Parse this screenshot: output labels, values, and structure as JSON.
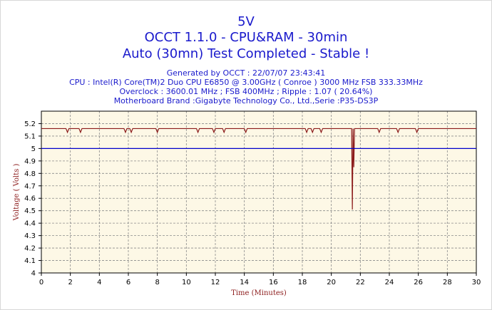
{
  "chart_data": {
    "type": "line",
    "title": "5V",
    "subtitle": "OCCT 1.1.0 - CPU&RAM - 30min",
    "status": "Auto (30mn) Test Completed - Stable !",
    "info_lines": [
      "Generated by OCCT : 22/07/07 23:43:41",
      "CPU : Intel(R) Core(TM)2 Duo CPU     E6850  @ 3.00GHz ( Conroe ) 3000 MHz FSB 333.33MHz",
      "Overclock : 3600.01 MHz ; FSB 400MHz ; Ripple : 1.07 ( 20.64%)",
      "Motherboard Brand :Gigabyte Technology Co., Ltd.,Serie :P35-DS3P"
    ],
    "xlabel": "Time (Minutes)",
    "ylabel": "Voltage ( Volts )",
    "xlim": [
      0,
      30
    ],
    "ylim": [
      4,
      5.3
    ],
    "x_ticks": [
      0,
      2,
      4,
      6,
      8,
      10,
      12,
      14,
      16,
      18,
      20,
      22,
      24,
      26,
      28,
      30
    ],
    "y_ticks": [
      4,
      4.1,
      4.2,
      4.3,
      4.4,
      4.5,
      4.6,
      4.7,
      4.8,
      4.9,
      5,
      5.1,
      5.2
    ],
    "y_tick_labels": [
      "4",
      "4.1",
      "4.2",
      "4.3",
      "4.4",
      "4.5",
      "4.6",
      "4.7",
      "4.8",
      "4.9",
      "5",
      "5.1",
      "5.2"
    ],
    "grid": true,
    "series": [
      {
        "color": "#8b1a1a",
        "x": [
          0,
          1.7,
          1.8,
          1.9,
          2.6,
          2.7,
          2.8,
          5.7,
          5.8,
          5.9,
          6.1,
          6.2,
          6.3,
          7.9,
          8.0,
          8.1,
          10.7,
          10.8,
          10.9,
          11.8,
          11.9,
          12.0,
          12.5,
          12.6,
          12.7,
          14.0,
          14.1,
          14.2,
          18.2,
          18.3,
          18.4,
          18.6,
          18.7,
          18.8,
          19.2,
          19.3,
          19.4,
          21.4,
          21.45,
          21.5,
          21.55,
          21.6,
          23.2,
          23.3,
          23.4,
          24.5,
          24.6,
          24.7,
          25.8,
          25.9,
          26.0,
          30
        ],
        "y": [
          5.16,
          5.16,
          5.13,
          5.16,
          5.16,
          5.13,
          5.16,
          5.16,
          5.13,
          5.16,
          5.16,
          5.13,
          5.16,
          5.16,
          5.13,
          5.16,
          5.16,
          5.13,
          5.16,
          5.16,
          5.13,
          5.16,
          5.16,
          5.13,
          5.16,
          5.16,
          5.13,
          5.16,
          5.16,
          5.13,
          5.16,
          5.16,
          5.13,
          5.16,
          5.16,
          5.13,
          5.16,
          5.16,
          4.51,
          5.16,
          4.85,
          5.16,
          5.16,
          5.13,
          5.16,
          5.16,
          5.13,
          5.16,
          5.16,
          5.13,
          5.16,
          5.16
        ]
      },
      {
        "color": "#0000cc",
        "x": [
          0,
          30
        ],
        "y": [
          5,
          5
        ]
      }
    ],
    "colors": {
      "plot_background": "#fdf8e6",
      "grid": "#8a8a8a",
      "title_text": "#1a1acc",
      "axis_title": "#8b1a1a"
    }
  }
}
